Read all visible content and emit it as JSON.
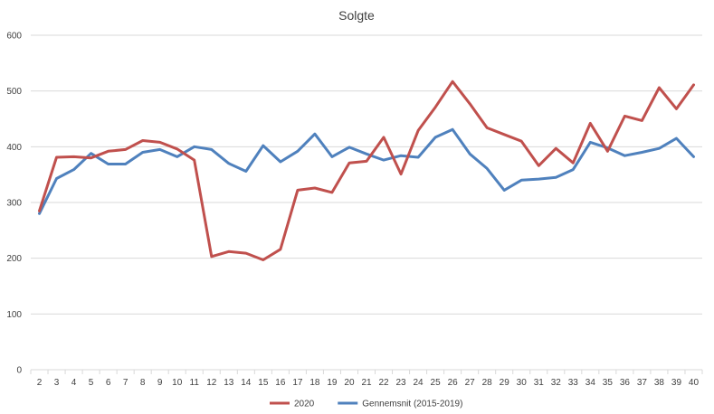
{
  "chart_data": {
    "type": "line",
    "title": "Solgte",
    "xlabel": "",
    "ylabel": "",
    "ylim": [
      0,
      600
    ],
    "yticks": [
      0,
      100,
      200,
      300,
      400,
      500,
      600
    ],
    "grid": true,
    "legend_position": "bottom",
    "x": [
      2,
      3,
      4,
      5,
      6,
      7,
      8,
      9,
      10,
      11,
      12,
      13,
      14,
      15,
      16,
      17,
      18,
      19,
      20,
      21,
      22,
      23,
      24,
      25,
      26,
      27,
      28,
      29,
      30,
      31,
      32,
      33,
      34,
      35,
      36,
      37,
      38,
      39,
      40
    ],
    "series": [
      {
        "name": "2020",
        "color": "#c0504d",
        "values": [
          285,
          381,
          382,
          380,
          392,
          395,
          411,
          408,
          396,
          376,
          203,
          212,
          209,
          197,
          216,
          322,
          326,
          318,
          371,
          374,
          417,
          351,
          429,
          471,
          517,
          477,
          434,
          422,
          410,
          366,
          397,
          371,
          442,
          392,
          455,
          447,
          506,
          468,
          511
        ]
      },
      {
        "name": "Gennemsnit (2015-2019)",
        "color": "#4f81bd",
        "values": [
          280,
          343,
          359,
          388,
          369,
          369,
          390,
          395,
          382,
          400,
          395,
          370,
          356,
          402,
          373,
          392,
          423,
          382,
          399,
          387,
          376,
          384,
          381,
          417,
          431,
          387,
          361,
          322,
          340,
          342,
          345,
          359,
          408,
          398,
          384,
          390,
          397,
          415,
          382
        ]
      }
    ]
  }
}
